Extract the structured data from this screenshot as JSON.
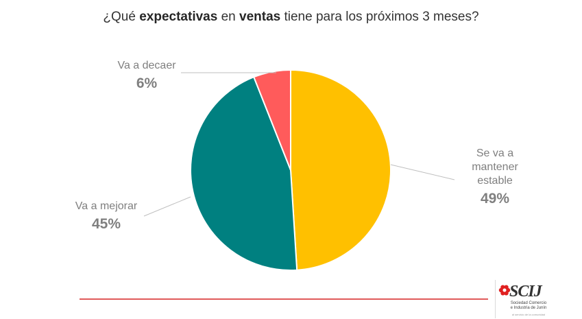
{
  "title": {
    "pre": "¿Qué ",
    "bold1": "expectativas",
    "mid": " en ",
    "bold2": "ventas",
    "post": " tiene para los próximos 3 meses?"
  },
  "chart_data": {
    "type": "pie",
    "title": "¿Qué expectativas en ventas tiene para los próximos 3 meses?",
    "slices": [
      {
        "label_lines": [
          "Se va a",
          "mantener",
          "estable"
        ],
        "value": 49,
        "value_label": "49%",
        "color": "#FFC000"
      },
      {
        "label_lines": [
          "Va a mejorar"
        ],
        "value": 45,
        "value_label": "45%",
        "color": "#008080"
      },
      {
        "label_lines": [
          "Va a decaer"
        ],
        "value": 6,
        "value_label": "6%",
        "color": "#FF5B5B"
      }
    ]
  },
  "footer": {
    "line_color": "#E05A5A"
  },
  "logo": {
    "mark": "SCIJ",
    "mark_color": "#333333",
    "accent_color": "#E02020",
    "sub_line1": "Sociedad Comercio",
    "sub_line2": "e Industria de Junín",
    "tiny": "al servicio de la comunidad"
  }
}
